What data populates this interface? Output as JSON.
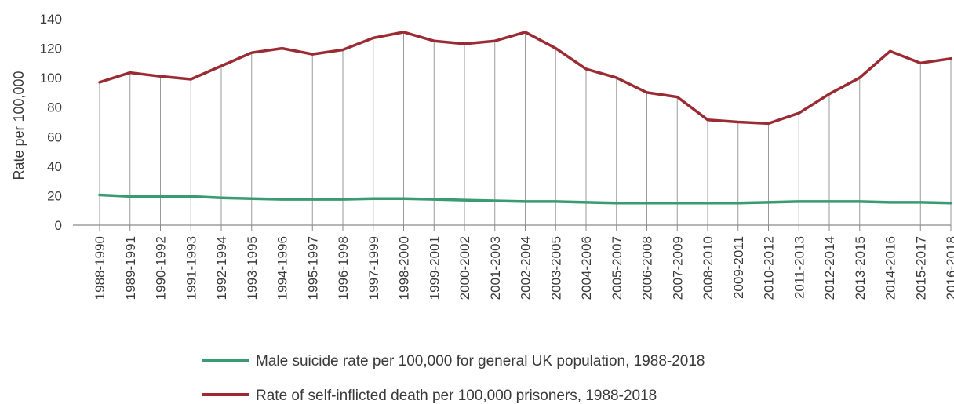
{
  "chart_data": {
    "type": "line",
    "title": "",
    "xlabel": "",
    "ylabel": "Rate per 100,000",
    "ylim": [
      0,
      140
    ],
    "yticks": [
      0,
      20,
      40,
      60,
      80,
      100,
      120,
      140
    ],
    "grid": "vertical drop lines at each category",
    "legend_placement": "bottom-center",
    "categories": [
      "1988-1990",
      "1989-1991",
      "1990-1992",
      "1991-1993",
      "1992-1994",
      "1993-1995",
      "1994-1996",
      "1995-1997",
      "1996-1998",
      "1997-1999",
      "1998-2000",
      "1999-2001",
      "2000-2002",
      "2001-2003",
      "2002-2004",
      "2003-2005",
      "2004-2006",
      "2005-2007",
      "2006-2008",
      "2007-2009",
      "2008-2010",
      "2009-2011",
      "2010-2012",
      "2011-2013",
      "2012-2014",
      "2013-2015",
      "2014-2016",
      "2015-2017",
      "2016-2018"
    ],
    "series": [
      {
        "name": "Male suicide rate per 100,000 for general UK population, 1988-2018",
        "color": "#3a9a72",
        "values": [
          20.5,
          19.5,
          19.5,
          19.5,
          18.5,
          18,
          17.5,
          17.5,
          17.5,
          18,
          18,
          17.5,
          17,
          16.5,
          16,
          16,
          15.5,
          15,
          15,
          15,
          15,
          15,
          15.5,
          16,
          16,
          16,
          15.5,
          15.5,
          15
        ]
      },
      {
        "name": "Rate of self-inflicted death per 100,000 prisoners, 1988-2018",
        "color": "#9b2b33",
        "values": [
          97,
          103.5,
          101,
          99,
          108,
          117,
          120,
          116,
          119,
          127,
          131,
          125,
          123,
          125,
          131,
          120,
          106,
          100,
          90,
          87,
          71.5,
          70,
          69,
          76,
          89,
          100,
          118,
          110,
          113
        ]
      }
    ]
  }
}
